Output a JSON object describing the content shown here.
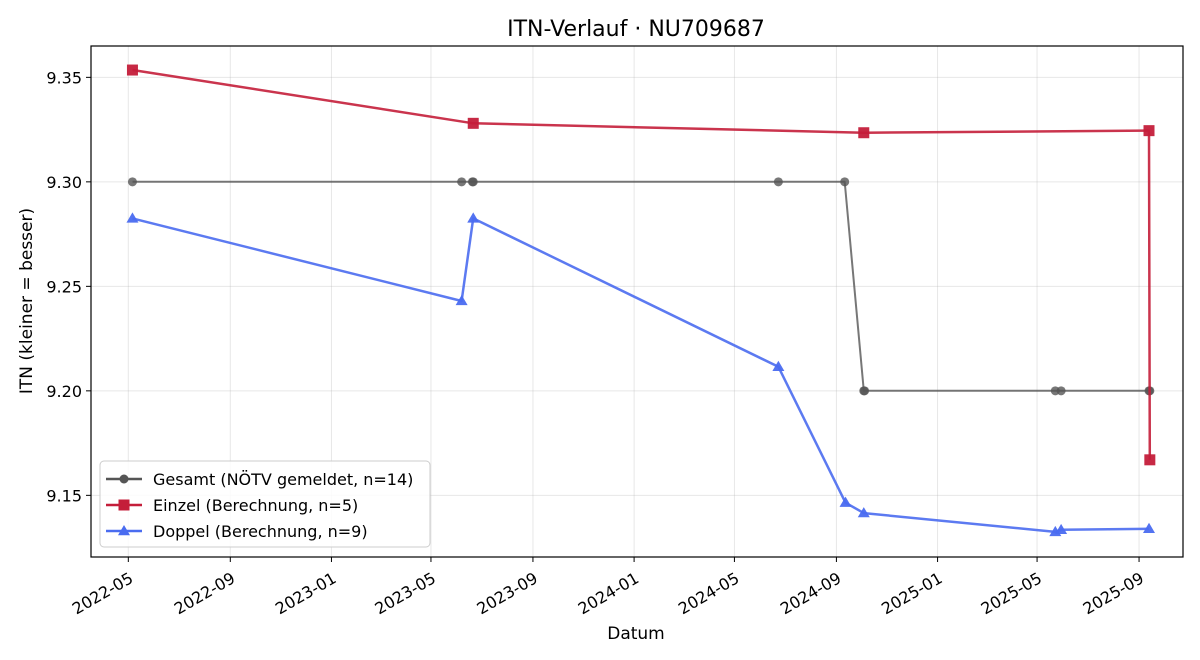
{
  "chart_data": {
    "type": "line",
    "title": "ITN-Verlauf · NU709687",
    "xlabel": "Datum",
    "ylabel": "ITN  (kleiner = besser)",
    "x_axis": "date",
    "xlim": [
      "2022-03-17",
      "2025-10-24"
    ],
    "ylim": [
      9.1205,
      9.365
    ],
    "x_ticks": [
      "2022-05-01",
      "2022-09-01",
      "2023-01-01",
      "2023-05-01",
      "2023-09-01",
      "2024-01-01",
      "2024-05-01",
      "2024-09-01",
      "2025-01-01",
      "2025-05-01",
      "2025-09-01"
    ],
    "x_tick_labels": [
      "2022-05",
      "2022-09",
      "2023-01",
      "2023-05",
      "2023-09",
      "2024-01",
      "2024-05",
      "2024-09",
      "2025-01",
      "2025-05",
      "2025-09"
    ],
    "y_ticks": [
      9.15,
      9.2,
      9.25,
      9.3,
      9.35
    ],
    "y_tick_labels": [
      "9.15",
      "9.20",
      "9.25",
      "9.30",
      "9.35"
    ],
    "grid": true,
    "legend_position": "lower-left",
    "series": [
      {
        "name": "Gesamt (NÖTV gemeldet, n=14)",
        "color": "#555555",
        "marker": "circle",
        "points": [
          {
            "x": "2022-05-06",
            "y": 9.3
          },
          {
            "x": "2023-06-07",
            "y": 9.3
          },
          {
            "x": "2023-06-20",
            "y": 9.3
          },
          {
            "x": "2023-06-21",
            "y": 9.3
          },
          {
            "x": "2024-06-23",
            "y": 9.3
          },
          {
            "x": "2024-09-11",
            "y": 9.3
          },
          {
            "x": "2024-10-04",
            "y": 9.2
          },
          {
            "x": "2024-10-05",
            "y": 9.2
          },
          {
            "x": "2025-05-23",
            "y": 9.2
          },
          {
            "x": "2025-05-30",
            "y": 9.2
          },
          {
            "x": "2025-09-13",
            "y": 9.2
          },
          {
            "x": "2025-09-14",
            "y": 9.2
          }
        ]
      },
      {
        "name": "Einzel (Berechnung, n=5)",
        "color": "#c41e3a",
        "marker": "square",
        "points": [
          {
            "x": "2022-05-06",
            "y": 9.3535
          },
          {
            "x": "2023-06-21",
            "y": 9.328
          },
          {
            "x": "2024-10-04",
            "y": 9.3235
          },
          {
            "x": "2025-09-13",
            "y": 9.3245
          },
          {
            "x": "2025-09-14",
            "y": 9.167
          }
        ]
      },
      {
        "name": "Doppel (Berechnung, n=9)",
        "color": "#4a6cf0",
        "marker": "triangle",
        "points": [
          {
            "x": "2022-05-06",
            "y": 9.2825
          },
          {
            "x": "2023-06-07",
            "y": 9.243
          },
          {
            "x": "2023-06-21",
            "y": 9.2825
          },
          {
            "x": "2024-06-23",
            "y": 9.2115
          },
          {
            "x": "2024-09-12",
            "y": 9.1465
          },
          {
            "x": "2024-10-04",
            "y": 9.1415
          },
          {
            "x": "2025-05-23",
            "y": 9.1325
          },
          {
            "x": "2025-05-30",
            "y": 9.1335
          },
          {
            "x": "2025-09-13",
            "y": 9.134
          }
        ]
      }
    ]
  }
}
